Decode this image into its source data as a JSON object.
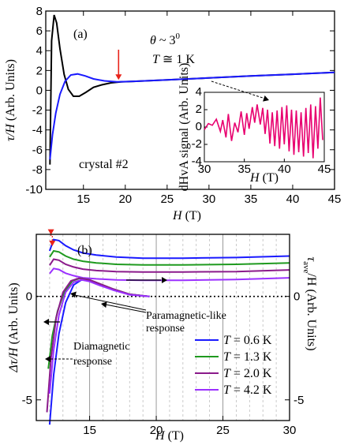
{
  "chart_data": [
    {
      "type": "line",
      "panel_label": "(a)",
      "annotations": {
        "theta_sym": "θ",
        "theta_rest": " ~ 3",
        "theta_deg": "0",
        "temp_sym": "T",
        "temp_rest": " ≅ 1 K",
        "crystal": "crystal #2"
      },
      "xlabel_sym": "H",
      "xlabel_unit": " (T)",
      "ylabel_sym": "τ/H",
      "ylabel_unit": " (Arb. Units)",
      "xlim": [
        10.5,
        45
      ],
      "ylim": [
        -10,
        8
      ],
      "xticks": [
        15,
        20,
        25,
        30,
        35,
        40,
        45
      ],
      "yticks": [
        8,
        6,
        4,
        2,
        0,
        -2,
        -4,
        -6,
        -8,
        -10
      ],
      "series": [
        {
          "color": "#000000",
          "x": [
            11.0,
            11.2,
            11.5,
            11.8,
            12.2,
            12.7,
            13.2,
            13.8,
            14.5,
            15.3,
            16.2,
            17.2,
            18.3,
            19.5,
            21,
            25,
            30,
            35,
            40,
            45
          ],
          "y": [
            -7.5,
            5.0,
            7.6,
            6.8,
            4.2,
            1.6,
            0.1,
            -0.6,
            -0.6,
            -0.2,
            0.3,
            0.55,
            0.75,
            0.85,
            0.9,
            1.05,
            1.25,
            1.45,
            1.62,
            1.8
          ]
        },
        {
          "color": "#1a1aff",
          "x": [
            11.0,
            11.3,
            11.7,
            12.2,
            12.8,
            13.5,
            14.3,
            15.2,
            16.2,
            17.5,
            19,
            21,
            25,
            30,
            35,
            40,
            45
          ],
          "y": [
            -7.0,
            -4.5,
            -2.3,
            -0.4,
            0.9,
            1.55,
            1.65,
            1.45,
            1.15,
            0.95,
            0.85,
            0.9,
            1.05,
            1.25,
            1.45,
            1.62,
            1.8
          ]
        }
      ],
      "marker_arrow_x": 19.2,
      "inset": {
        "xlabel_sym": "H",
        "xlabel_unit": " (T)",
        "ylabel": "dHvA signal (Arb. Units)",
        "xlim": [
          30,
          45
        ],
        "ylim": [
          -4,
          4
        ],
        "xticks": [
          30,
          35,
          40,
          45
        ],
        "yticks": [
          4,
          2,
          0,
          -2,
          -4
        ],
        "color": "#e8006f",
        "x": [
          30,
          30.5,
          31,
          31.5,
          32,
          32.3,
          32.7,
          33,
          33.4,
          33.8,
          34.2,
          34.6,
          35,
          35.3,
          35.6,
          36,
          36.3,
          36.6,
          37,
          37.3,
          37.6,
          37.9,
          38.2,
          38.5,
          38.8,
          39.1,
          39.4,
          39.7,
          40,
          40.3,
          40.6,
          40.9,
          41.2,
          41.5,
          41.8,
          42.1,
          42.4,
          42.7,
          43,
          43.3,
          43.6,
          43.9,
          44.2,
          44.5,
          44.8
        ],
        "y": [
          -0.3,
          0.4,
          0.2,
          0.9,
          -0.5,
          0.8,
          -1.2,
          1.5,
          -1.6,
          0.5,
          -0.6,
          1.8,
          -0.9,
          1.6,
          -0.2,
          2.3,
          0.5,
          2.6,
          0.3,
          2.2,
          -0.8,
          2.0,
          -1.9,
          1.7,
          -2.2,
          1.9,
          -2.5,
          2.3,
          -2.0,
          2.5,
          -2.8,
          2.0,
          -3.2,
          1.9,
          -2.9,
          1.7,
          -3.4,
          2.2,
          -3.0,
          2.6,
          -3.6,
          2.4,
          -2.5,
          3.4,
          -1.5
        ]
      }
    },
    {
      "type": "line",
      "panel_label": "(b)",
      "xlabel_sym": "H",
      "xlabel_unit": " (T)",
      "ylabel_left_sym": "Δτ/H",
      "ylabel_left_unit": " (Arb. Units)",
      "ylabel_right_sym": "τ",
      "ylabel_right_sub": "ave",
      "ylabel_right_unit": "/H (Arb. Units)",
      "xlim": [
        11,
        30
      ],
      "ylim": [
        -6,
        3
      ],
      "xticks": [
        15,
        20,
        25,
        30
      ],
      "yticks": [
        -5,
        0
      ],
      "right_yticks": [
        -5,
        0
      ],
      "annotations": {
        "paramagnetic": [
          "Paramagnetic-like",
          "response"
        ],
        "diamagnetic": [
          "Diamagnetic",
          "response"
        ]
      },
      "legend_placement": "bottom-right",
      "series": [
        {
          "name": "T = 0.6 K",
          "name_sym": "T",
          "name_rest": " = 0.6 K",
          "color": "#1a1aff",
          "x": [
            12.0,
            12.3,
            12.7,
            13.2,
            13.8,
            14.5,
            15.5,
            17,
            19,
            22,
            26,
            30
          ],
          "y": [
            2.2,
            2.75,
            2.7,
            2.45,
            2.25,
            2.1,
            2.0,
            1.9,
            1.85,
            1.85,
            1.88,
            1.95
          ]
        },
        {
          "name": "T = 1.3 K",
          "name_sym": "T",
          "name_rest": " = 1.3 K",
          "color": "#1f9a1f",
          "x": [
            12.0,
            12.3,
            12.7,
            13.2,
            13.8,
            14.5,
            15.5,
            17,
            19,
            22,
            26,
            30
          ],
          "y": [
            1.9,
            2.2,
            2.15,
            1.95,
            1.8,
            1.7,
            1.62,
            1.55,
            1.52,
            1.52,
            1.55,
            1.62
          ]
        },
        {
          "name": "T = 2.0 K",
          "name_sym": "T",
          "name_rest": " = 2.0 K",
          "color": "#8b1a8b",
          "x": [
            12.0,
            12.3,
            12.7,
            13.2,
            13.8,
            14.5,
            15.5,
            17,
            19,
            22,
            26,
            30
          ],
          "y": [
            1.5,
            1.8,
            1.75,
            1.55,
            1.42,
            1.32,
            1.25,
            1.2,
            1.18,
            1.18,
            1.2,
            1.28
          ]
        },
        {
          "name": "T = 4.2 K",
          "name_sym": "T",
          "name_rest": " = 4.2 K",
          "color": "#9b30ff",
          "x": [
            12.0,
            12.3,
            12.7,
            13.2,
            13.8,
            14.5,
            15.5,
            17,
            19,
            22,
            26,
            30
          ],
          "y": [
            1.1,
            1.35,
            1.3,
            1.12,
            1.0,
            0.9,
            0.85,
            0.8,
            0.78,
            0.78,
            0.82,
            0.9
          ]
        }
      ],
      "delta_series": [
        {
          "color": "#1a1aff",
          "x": [
            12.0,
            12.3,
            12.7,
            13.2,
            13.8,
            14.4,
            15.0,
            15.8,
            16.8,
            18,
            19.5
          ],
          "y": [
            -6.2,
            -3.8,
            -1.8,
            -0.3,
            0.55,
            0.8,
            0.75,
            0.55,
            0.3,
            0.1,
            0.0
          ]
        },
        {
          "color": "#1f9a1f",
          "x": [
            11.9,
            12.2,
            12.6,
            13.1,
            13.7,
            14.3,
            15.0,
            15.8,
            16.8,
            18,
            19.5
          ],
          "y": [
            -3.5,
            -1.9,
            -0.7,
            0.2,
            0.75,
            0.88,
            0.8,
            0.6,
            0.35,
            0.1,
            0.0
          ]
        },
        {
          "color": "#8b1a8b",
          "x": [
            11.8,
            12.1,
            12.5,
            13.0,
            13.6,
            14.2,
            15.0,
            15.8,
            16.8,
            18,
            19.5
          ],
          "y": [
            -5.6,
            -3.0,
            -1.0,
            0.2,
            0.75,
            0.88,
            0.8,
            0.6,
            0.35,
            0.1,
            0.0
          ]
        },
        {
          "color": "#9b30ff",
          "x": [
            12.0,
            12.3,
            12.7,
            13.2,
            13.8,
            14.4,
            15.0,
            15.8,
            16.8,
            18,
            19.5
          ],
          "y": [
            -4.7,
            -2.6,
            -0.9,
            0.2,
            0.68,
            0.8,
            0.72,
            0.52,
            0.3,
            0.08,
            0.0
          ]
        }
      ]
    }
  ]
}
